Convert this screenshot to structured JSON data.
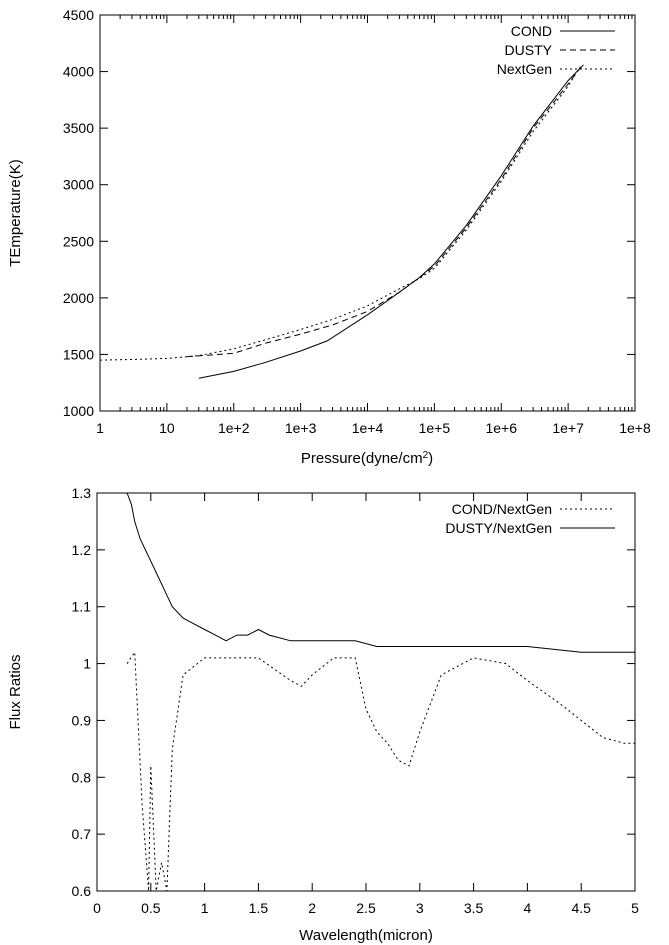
{
  "chart_data": [
    {
      "type": "line",
      "ylabel": "TEmperature(K)",
      "xlabel_main": "Pressure(dyne/cm",
      "xlabel_sup": "2",
      "xlabel_tail": ")",
      "x_scale": "log",
      "xlim": [
        1,
        100000000
      ],
      "ylim": [
        1000,
        4500
      ],
      "x_ticks": [
        {
          "v": 1,
          "label": "1"
        },
        {
          "v": 10,
          "label": "10"
        },
        {
          "v": 100,
          "label": "1e+2"
        },
        {
          "v": 1000,
          "label": "1e+3"
        },
        {
          "v": 10000,
          "label": "1e+4"
        },
        {
          "v": 100000,
          "label": "1e+5"
        },
        {
          "v": 1000000,
          "label": "1e+6"
        },
        {
          "v": 10000000,
          "label": "1e+7"
        },
        {
          "v": 100000000,
          "label": "1e+8"
        }
      ],
      "y_ticks": [
        {
          "v": 1000,
          "label": "1000"
        },
        {
          "v": 1500,
          "label": "1500"
        },
        {
          "v": 2000,
          "label": "2000"
        },
        {
          "v": 2500,
          "label": "2500"
        },
        {
          "v": 3000,
          "label": "3000"
        },
        {
          "v": 3500,
          "label": "3500"
        },
        {
          "v": 4000,
          "label": "4000"
        },
        {
          "v": 4500,
          "label": "4500"
        }
      ],
      "legend_position": "top-right",
      "series": [
        {
          "name": "COND",
          "style": "solid",
          "x": [
            30,
            100,
            300,
            1000,
            2500,
            10000,
            30000,
            60000,
            100000,
            300000,
            1000000,
            3000000,
            10000000,
            17000000
          ],
          "y": [
            1290,
            1350,
            1430,
            1530,
            1620,
            1850,
            2050,
            2180,
            2300,
            2640,
            3080,
            3520,
            3920,
            4060
          ]
        },
        {
          "name": "DUSTY",
          "style": "dashed",
          "x": [
            20,
            100,
            300,
            1000,
            3000,
            10000,
            30000,
            60000,
            100000,
            300000,
            1000000,
            3000000,
            10000000,
            16000000
          ],
          "y": [
            1480,
            1510,
            1600,
            1680,
            1760,
            1880,
            2050,
            2180,
            2280,
            2620,
            3050,
            3500,
            3890,
            4050
          ]
        },
        {
          "name": "NextGen",
          "style": "dotted",
          "x": [
            1,
            3,
            10,
            30,
            100,
            300,
            1000,
            3000,
            10000,
            30000,
            60000,
            100000,
            300000,
            1000000,
            3000000,
            10000000,
            15000000
          ],
          "y": [
            1450,
            1455,
            1465,
            1490,
            1550,
            1630,
            1720,
            1810,
            1930,
            2080,
            2170,
            2260,
            2600,
            3030,
            3470,
            3870,
            4040
          ]
        }
      ]
    },
    {
      "type": "line",
      "ylabel": "Flux Ratios",
      "xlabel": "Wavelength(micron)",
      "xlim": [
        0,
        5
      ],
      "ylim": [
        0.6,
        1.3
      ],
      "x_ticks": [
        {
          "v": 0,
          "label": "0"
        },
        {
          "v": 0.5,
          "label": "0.5"
        },
        {
          "v": 1,
          "label": "1"
        },
        {
          "v": 1.5,
          "label": "1.5"
        },
        {
          "v": 2,
          "label": "2"
        },
        {
          "v": 2.5,
          "label": "2.5"
        },
        {
          "v": 3,
          "label": "3"
        },
        {
          "v": 3.5,
          "label": "3.5"
        },
        {
          "v": 4,
          "label": "4"
        },
        {
          "v": 4.5,
          "label": "4.5"
        },
        {
          "v": 5,
          "label": "5"
        }
      ],
      "y_ticks": [
        {
          "v": 0.6,
          "label": "0.6"
        },
        {
          "v": 0.7,
          "label": "0.7"
        },
        {
          "v": 0.8,
          "label": "0.8"
        },
        {
          "v": 0.9,
          "label": "0.9"
        },
        {
          "v": 1.0,
          "label": "1"
        },
        {
          "v": 1.1,
          "label": "1.1"
        },
        {
          "v": 1.2,
          "label": "1.2"
        },
        {
          "v": 1.3,
          "label": "1.3"
        }
      ],
      "legend_position": "top-right",
      "series": [
        {
          "name": "COND/NextGen",
          "style": "dotted",
          "x": [
            0.28,
            0.35,
            0.42,
            0.48,
            0.5,
            0.55,
            0.6,
            0.65,
            0.7,
            0.8,
            1.0,
            1.2,
            1.5,
            1.8,
            1.9,
            2.0,
            2.2,
            2.4,
            2.5,
            2.6,
            2.7,
            2.8,
            2.9,
            3.0,
            3.2,
            3.5,
            3.8,
            4.0,
            4.3,
            4.5,
            4.7,
            4.9,
            5.0
          ],
          "y": [
            1.0,
            1.02,
            0.75,
            0.6,
            0.82,
            0.6,
            0.65,
            0.6,
            0.85,
            0.98,
            1.01,
            1.01,
            1.01,
            0.97,
            0.96,
            0.98,
            1.01,
            1.01,
            0.92,
            0.88,
            0.86,
            0.83,
            0.82,
            0.88,
            0.98,
            1.01,
            1.0,
            0.97,
            0.93,
            0.9,
            0.87,
            0.86,
            0.86
          ]
        },
        {
          "name": "DUSTY/NextGen",
          "style": "solid",
          "x": [
            0.28,
            0.32,
            0.35,
            0.4,
            0.45,
            0.5,
            0.55,
            0.6,
            0.65,
            0.7,
            0.8,
            0.9,
            1.0,
            1.1,
            1.2,
            1.3,
            1.4,
            1.5,
            1.6,
            1.8,
            2.0,
            2.2,
            2.4,
            2.6,
            3.0,
            3.5,
            4.0,
            4.5,
            5.0
          ],
          "y": [
            1.3,
            1.28,
            1.25,
            1.22,
            1.2,
            1.18,
            1.16,
            1.14,
            1.12,
            1.1,
            1.08,
            1.07,
            1.06,
            1.05,
            1.04,
            1.05,
            1.05,
            1.06,
            1.05,
            1.04,
            1.04,
            1.04,
            1.04,
            1.03,
            1.03,
            1.03,
            1.03,
            1.02,
            1.02
          ]
        }
      ]
    }
  ]
}
